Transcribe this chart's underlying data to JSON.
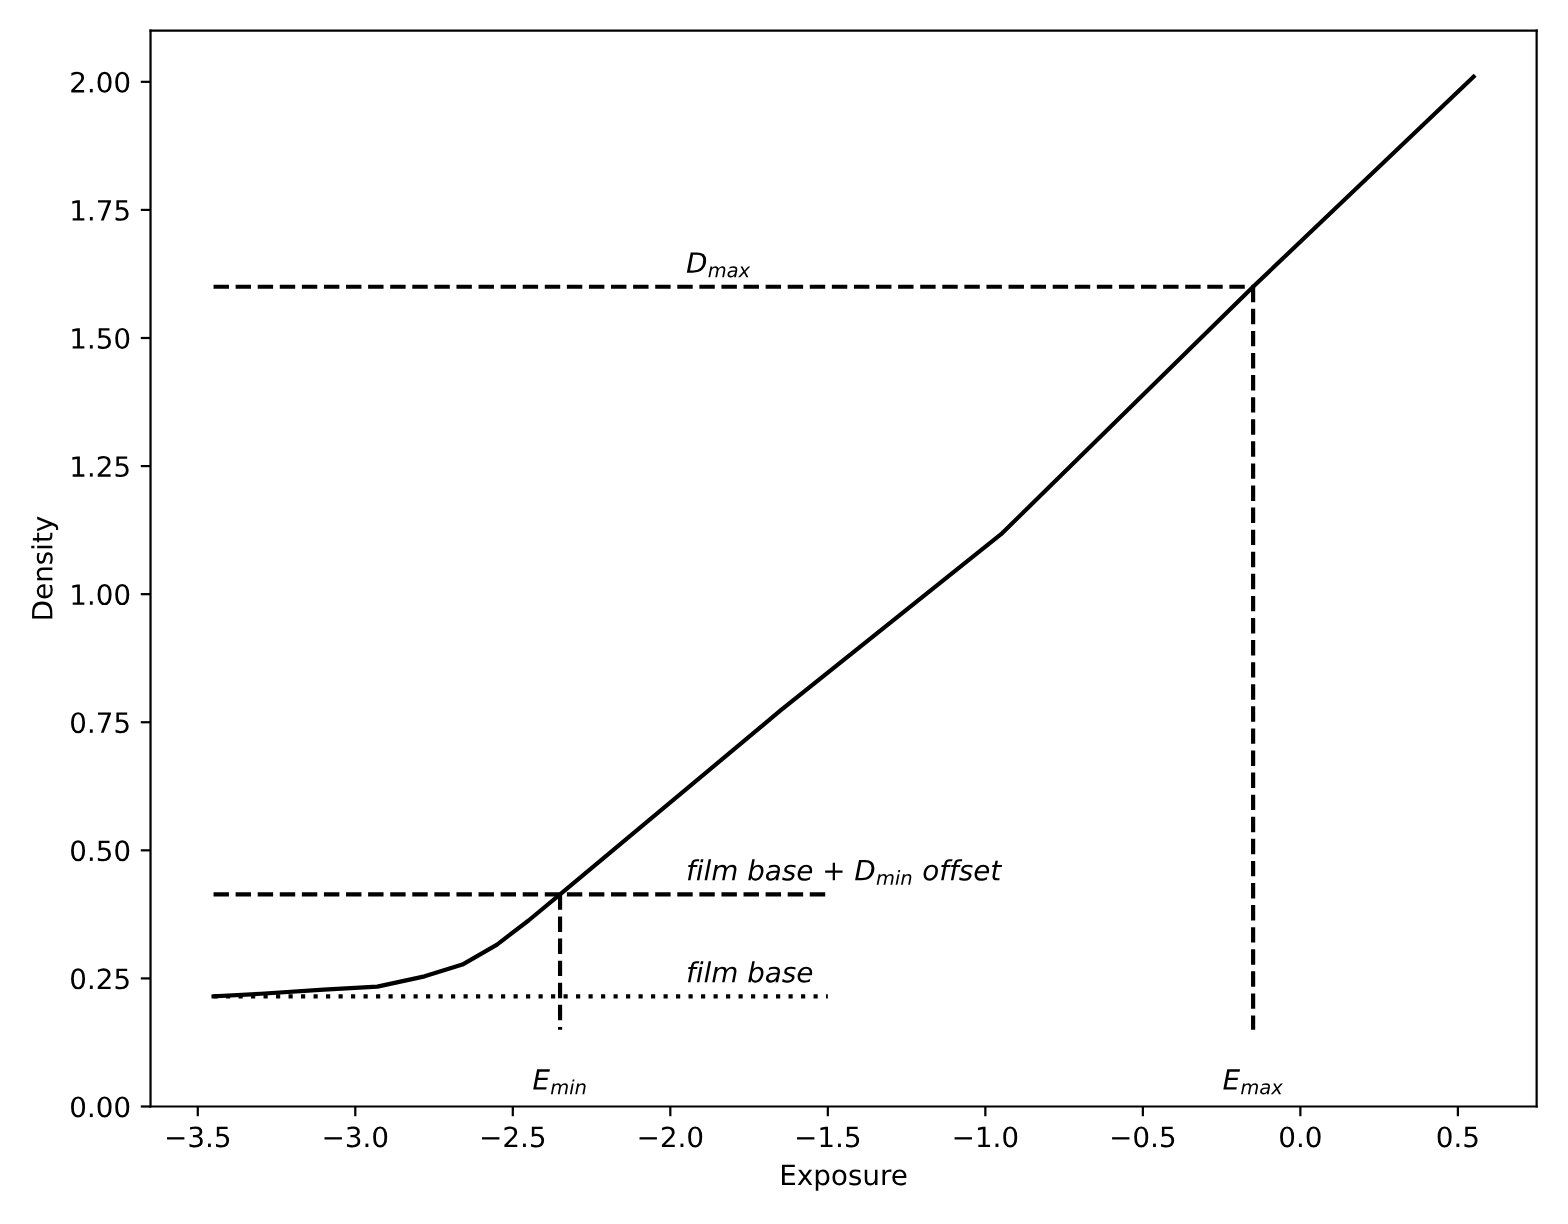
{
  "chart_data": {
    "type": "line",
    "xlabel": "Exposure",
    "ylabel": "Density",
    "xlim": [
      -3.65,
      0.75
    ],
    "xticks": [
      {
        "value": -3.5,
        "label": "−3.5"
      },
      {
        "value": -3.0,
        "label": "−3.0"
      },
      {
        "value": -2.5,
        "label": "−2.5"
      },
      {
        "value": -2.0,
        "label": "−2.0"
      },
      {
        "value": -1.5,
        "label": "−1.5"
      },
      {
        "value": -1.0,
        "label": "−1.0"
      },
      {
        "value": -0.5,
        "label": "−0.5"
      },
      {
        "value": 0.0,
        "label": "0.0"
      },
      {
        "value": 0.5,
        "label": "0.5"
      }
    ],
    "ylim": [
      0,
      2.1
    ],
    "yticks": [
      {
        "value": 0,
        "label": "0.00"
      },
      {
        "value": 0.25,
        "label": "0.25"
      },
      {
        "value": 0.5,
        "label": "0.50"
      },
      {
        "value": 0.75,
        "label": "0.75"
      },
      {
        "value": 1.0,
        "label": "1.00"
      },
      {
        "value": 1.25,
        "label": "1.25"
      },
      {
        "value": 1.5,
        "label": "1.50"
      },
      {
        "value": 1.75,
        "label": "1.75"
      },
      {
        "value": 2.0,
        "label": "2.00"
      }
    ],
    "grid": false,
    "series": [
      {
        "color": "#000000",
        "line_style": "solid",
        "x": [
          -3.45,
          -3.3,
          -3.1,
          -2.93,
          -2.78,
          -2.66,
          -2.55,
          -2.45,
          -2.35,
          -1.65,
          -0.95,
          -0.15,
          0.55
        ],
        "values": [
          0.215,
          0.22,
          0.228,
          0.234,
          0.254,
          0.277,
          0.316,
          0.363,
          0.414,
          0.773,
          1.117,
          1.6,
          2.01
        ]
      },
      {
        "color": "#000000",
        "line_style": "dashed",
        "x": [
          -3.45,
          -0.15
        ],
        "values": [
          1.6,
          1.6
        ]
      },
      {
        "color": "#000000",
        "line_style": "dashed",
        "x": [
          -0.15,
          -0.15
        ],
        "values": [
          1.6,
          0.15
        ]
      },
      {
        "color": "#000000",
        "line_style": "dashed",
        "x": [
          -3.45,
          -1.5
        ],
        "values": [
          0.414,
          0.414
        ]
      },
      {
        "color": "#000000",
        "line_style": "dashed",
        "x": [
          -2.35,
          -2.35
        ],
        "values": [
          0.414,
          0.15
        ]
      },
      {
        "color": "#000000",
        "line_style": "dotted",
        "x": [
          -3.45,
          -1.5
        ],
        "values": [
          0.215,
          0.215
        ]
      }
    ],
    "annotations": [
      {
        "text": "D$_{max}$",
        "x": -1.95,
        "y": 1.6
      },
      {
        "text": "film base + D$_{min}$ offset",
        "x": -1.95,
        "y": 0.414
      },
      {
        "text": "film base",
        "x": -1.95,
        "y": 0.215
      },
      {
        "text": "E$_{min}$",
        "x": -2.35,
        "y": 0.15
      },
      {
        "text": "E$_{max}$",
        "x": -0.15,
        "y": 0.15
      }
    ]
  }
}
